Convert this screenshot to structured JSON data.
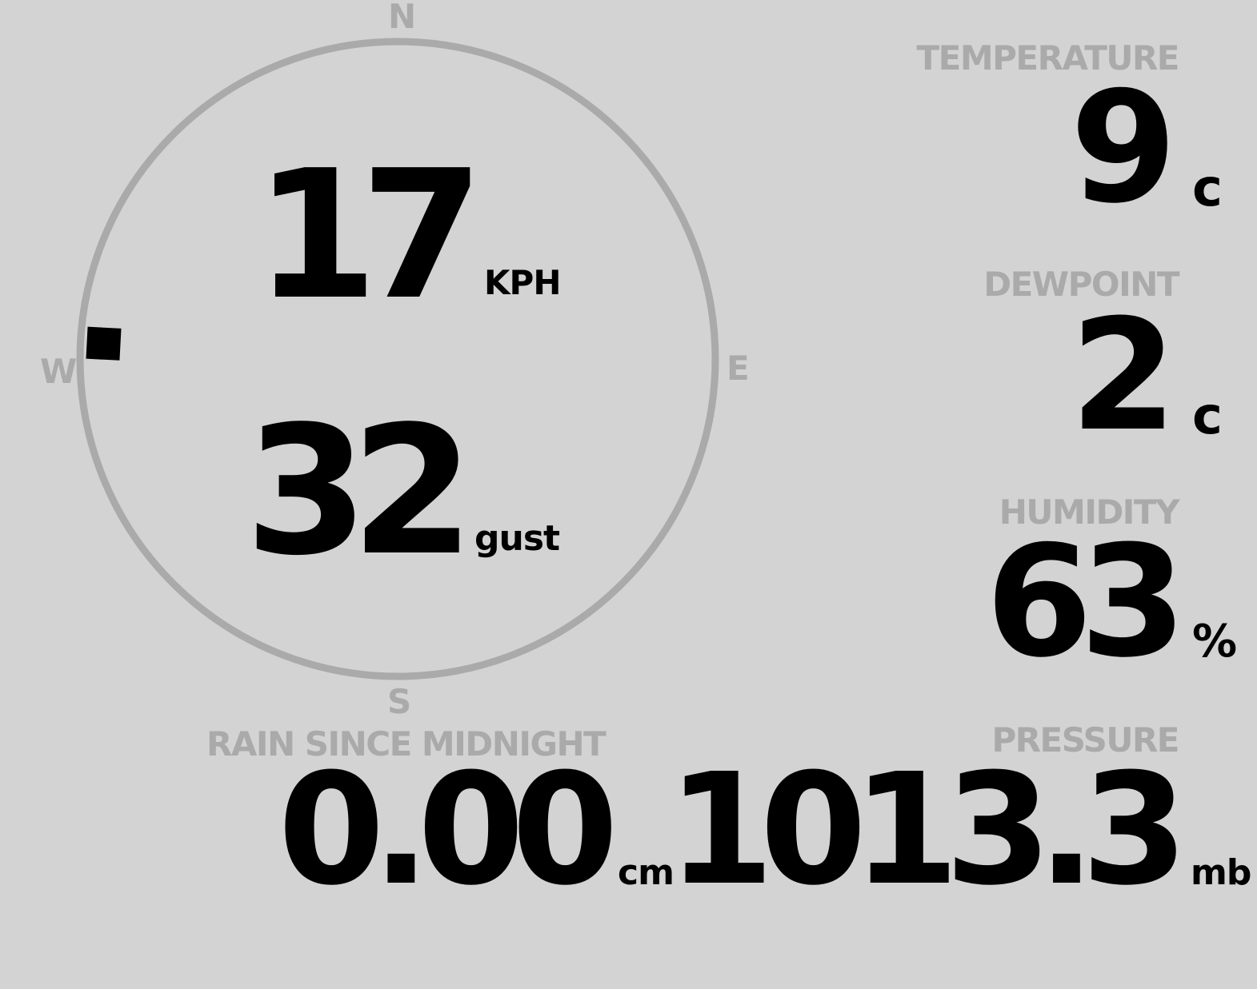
{
  "compass": {
    "north": "N",
    "east": "E",
    "south": "S",
    "west": "W",
    "wind_direction_deg": 273,
    "ring_color": "#aaaaaa",
    "marker_color": "#000000"
  },
  "wind": {
    "speed": "17",
    "speed_unit": "KPH",
    "gust": "32",
    "gust_unit": "gust"
  },
  "temperature": {
    "label": "TEMPERATURE",
    "value": "9",
    "unit": "c"
  },
  "dewpoint": {
    "label": "DEWPOINT",
    "value": "2",
    "unit": "c"
  },
  "humidity": {
    "label": "HUMIDITY",
    "value": "63",
    "unit": "%"
  },
  "pressure": {
    "label": "PRESSURE",
    "value": "1013.3",
    "unit": "mb"
  },
  "rain": {
    "label": "RAIN SINCE MIDNIGHT",
    "value": "0.00",
    "unit": "cm"
  },
  "colors": {
    "background": "#d3d3d3",
    "label": "#aaaaaa",
    "value": "#000000"
  }
}
